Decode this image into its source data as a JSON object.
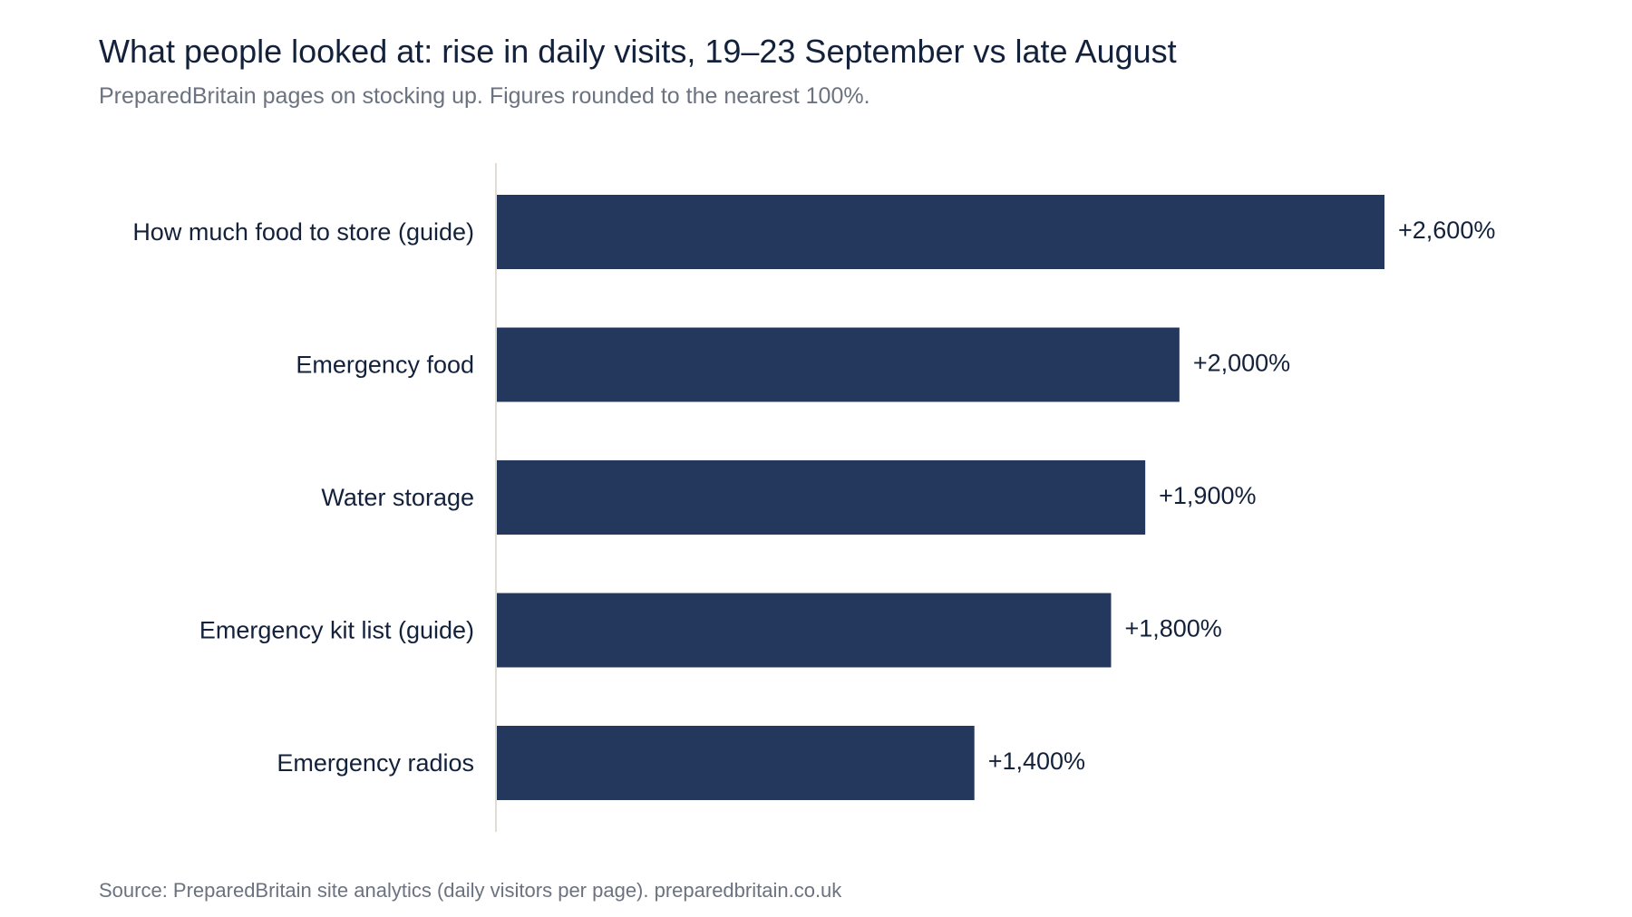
{
  "chart_data": {
    "type": "bar",
    "orientation": "horizontal",
    "title": "What people looked at: rise in daily visits, 19–23 September vs late August",
    "subtitle": "PreparedBritain pages on stocking up. Figures rounded to the nearest 100%.",
    "source": "Source: PreparedBritain site analytics (daily visitors per page). preparedbritain.co.uk",
    "categories": [
      "How much food to store (guide)",
      "Emergency food",
      "Water storage",
      "Emergency kit list (guide)",
      "Emergency radios"
    ],
    "values": [
      2600,
      2000,
      1900,
      1800,
      1400
    ],
    "value_labels": [
      "+2,600%",
      "+2,000%",
      "+1,900%",
      "+1,800%",
      "+1,400%"
    ],
    "xlim": [
      0,
      2600
    ],
    "grid": false,
    "legend": "none",
    "colors": {
      "bar": "#24385d",
      "axis": "#e2ddd3",
      "text": "#13213b",
      "muted": "#6b7280"
    }
  }
}
